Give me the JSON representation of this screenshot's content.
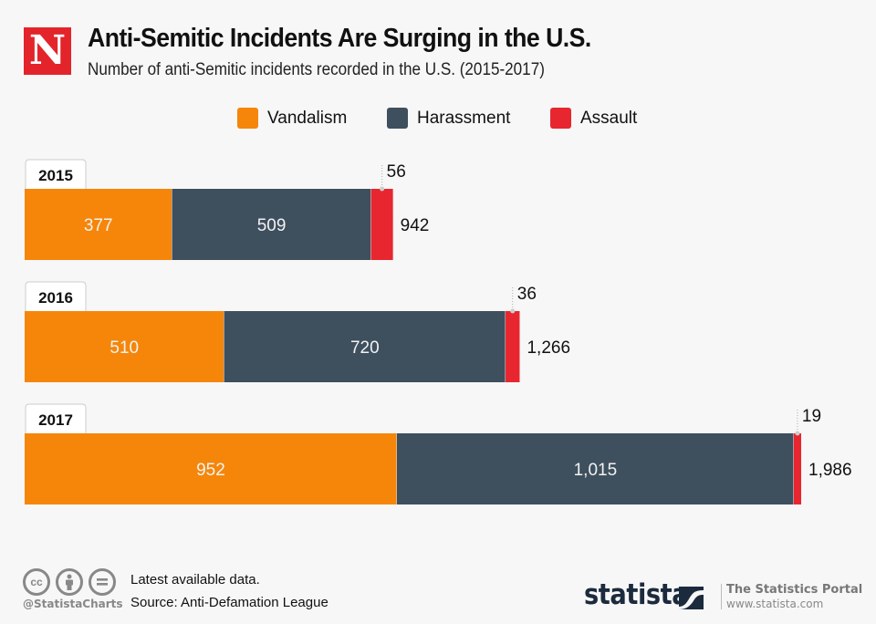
{
  "header": {
    "logo_letter": "N",
    "title": "Anti-Semitic Incidents Are Surging in the U.S.",
    "subtitle": "Number of anti-Semitic incidents recorded in the U.S. (2015-2017)"
  },
  "colors": {
    "vandalism": "#f5860a",
    "harassment": "#3e4f5e",
    "assault": "#e8262f",
    "background": "#f7f7f7"
  },
  "chart_data": {
    "type": "bar",
    "orientation": "horizontal",
    "stacked": true,
    "title": "Anti-Semitic Incidents Are Surging in the U.S.",
    "subtitle": "Number of anti-Semitic incidents recorded in the U.S. (2015-2017)",
    "xlabel": "",
    "ylabel": "",
    "categories": [
      "2015",
      "2016",
      "2017"
    ],
    "series": [
      {
        "name": "Vandalism",
        "values": [
          377,
          510,
          952
        ],
        "labels": [
          "377",
          "510",
          "952"
        ]
      },
      {
        "name": "Harassment",
        "values": [
          509,
          720,
          1015
        ],
        "labels": [
          "509",
          "720",
          "1,015"
        ]
      },
      {
        "name": "Assault",
        "values": [
          56,
          36,
          19
        ],
        "labels": [
          "56",
          "36",
          "19"
        ]
      }
    ],
    "totals": [
      942,
      1266,
      1986
    ],
    "total_labels": [
      "942",
      "1,266",
      "1,986"
    ],
    "xlim": [
      0,
      1986
    ],
    "grid": false,
    "legend_position": "top-center"
  },
  "footer": {
    "handle": "@StatistaCharts",
    "note": "Latest available data.",
    "source": "Source: Anti-Defamation League",
    "brand": "statista",
    "tagline": "The Statistics Portal",
    "url": "www.statista.com",
    "license_icons": [
      "cc-icon",
      "attribution-icon",
      "no-derivatives-icon"
    ]
  }
}
